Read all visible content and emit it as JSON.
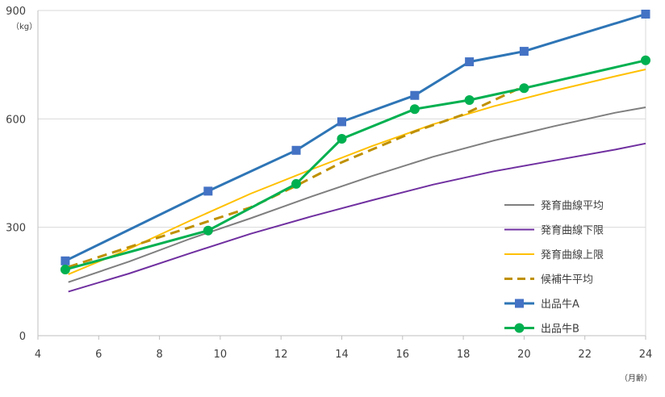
{
  "chart_data": {
    "type": "line",
    "x_unit_label": "（月齢）",
    "y_unit_label": "（kg）",
    "xlim": [
      4,
      24
    ],
    "ylim": [
      0,
      900
    ],
    "x_ticks": [
      4,
      6,
      8,
      10,
      12,
      14,
      16,
      18,
      20,
      22,
      24
    ],
    "y_ticks": [
      0,
      300,
      600,
      900
    ],
    "grid": "horizontal",
    "legend_position": "right",
    "series": [
      {
        "name": "発育曲線平均",
        "color": "#7f7f7f",
        "style": "solid",
        "marker": "none",
        "points": [
          [
            5,
            148
          ],
          [
            7,
            205
          ],
          [
            9,
            268
          ],
          [
            11,
            325
          ],
          [
            13,
            385
          ],
          [
            15,
            442
          ],
          [
            17,
            495
          ],
          [
            19,
            540
          ],
          [
            21,
            580
          ],
          [
            23,
            617
          ],
          [
            24,
            632
          ]
        ]
      },
      {
        "name": "発育曲線下限",
        "color": "#7030a0",
        "style": "solid",
        "marker": "none",
        "points": [
          [
            5,
            122
          ],
          [
            7,
            172
          ],
          [
            9,
            228
          ],
          [
            11,
            282
          ],
          [
            13,
            330
          ],
          [
            15,
            375
          ],
          [
            17,
            418
          ],
          [
            19,
            455
          ],
          [
            21,
            485
          ],
          [
            23,
            515
          ],
          [
            24,
            532
          ]
        ]
      },
      {
        "name": "発育曲線上限",
        "color": "#ffc000",
        "style": "solid",
        "marker": "none",
        "points": [
          [
            5,
            170
          ],
          [
            7,
            240
          ],
          [
            9,
            318
          ],
          [
            11,
            393
          ],
          [
            13,
            460
          ],
          [
            15,
            525
          ],
          [
            17,
            585
          ],
          [
            19,
            635
          ],
          [
            21,
            678
          ],
          [
            23,
            718
          ],
          [
            24,
            737
          ]
        ]
      },
      {
        "name": "候補牛平均",
        "color": "#bf9000",
        "style": "dashed",
        "marker": "none",
        "points": [
          [
            5,
            190
          ],
          [
            7,
            245
          ],
          [
            9,
            300
          ],
          [
            11,
            355
          ],
          [
            12.5,
            415
          ],
          [
            14,
            480
          ],
          [
            16.4,
            565
          ],
          [
            18,
            612
          ],
          [
            19.8,
            683
          ]
        ]
      },
      {
        "name": "出品牛A",
        "color": "#2e75b6",
        "style": "solid",
        "marker": "square",
        "marker_color": "#4472c4",
        "points": [
          [
            4.9,
            207
          ],
          [
            9.6,
            400
          ],
          [
            12.5,
            513
          ],
          [
            14,
            592
          ],
          [
            16.4,
            665
          ],
          [
            18.2,
            758
          ],
          [
            20,
            787
          ],
          [
            24,
            890
          ]
        ]
      },
      {
        "name": "出品牛B",
        "color": "#00b050",
        "style": "solid",
        "marker": "circle",
        "marker_color": "#00b050",
        "points": [
          [
            4.9,
            183
          ],
          [
            9.6,
            291
          ],
          [
            12.5,
            420
          ],
          [
            14,
            545
          ],
          [
            16.4,
            627
          ],
          [
            18.2,
            652
          ],
          [
            20,
            685
          ],
          [
            24,
            762
          ]
        ]
      }
    ]
  }
}
